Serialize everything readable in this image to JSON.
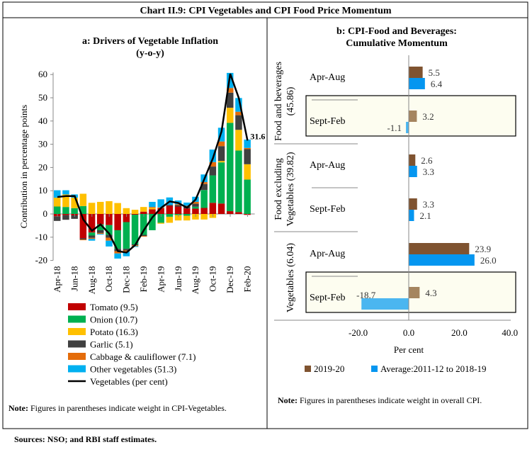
{
  "title": "Chart II.9: CPI Vegetables and CPI Food Price Momentum",
  "sources": "Sources: NSO; and RBI staff estimates.",
  "colors": {
    "tomato": "#c00000",
    "onion": "#00b050",
    "potato": "#ffc000",
    "garlic": "#404040",
    "cabbage": "#e46c0a",
    "other": "#00b0f0",
    "line": "#000000",
    "brown": "#7f5330",
    "brown_light": "#a5855f",
    "blue": "#0596f0",
    "blue_light": "#4bb6f0",
    "highlight": "#fdfdf0"
  },
  "chart_data": [
    {
      "type": "bar",
      "stacked": true,
      "title": "a: Drivers of Vegetable Inflation",
      "subtitle": "(y-o-y)",
      "ylabel": "Contribution in percentage points",
      "ylim": [
        -20,
        60
      ],
      "yticks": [
        -20,
        -10,
        0,
        10,
        20,
        30,
        40,
        50,
        60
      ],
      "categories": [
        "Apr-18",
        "May-18",
        "Jun-18",
        "Jul-18",
        "Aug-18",
        "Sep-18",
        "Oct-18",
        "Nov-18",
        "Dec-18",
        "Jan-19",
        "Feb-19",
        "Mar-19",
        "Apr-19",
        "May-19",
        "Jun-19",
        "Jul-19",
        "Aug-19",
        "Sep-19",
        "Oct-19",
        "Nov-19",
        "Dec-19",
        "Jan-20",
        "Feb-20"
      ],
      "xtick_labels": [
        "Apr-18",
        "Jun-18",
        "Aug-18",
        "Oct-18",
        "Dec-18",
        "Feb-19",
        "Apr-19",
        "Jun-19",
        "Aug-19",
        "Oct-19",
        "Dec-19",
        "Feb-20"
      ],
      "series": [
        {
          "name": "Tomato (9.5)",
          "key": "tomato",
          "values": [
            -1,
            -0.5,
            -0.6,
            -10.5,
            -8,
            -4.5,
            -4.8,
            -7,
            -3.5,
            -0.3,
            1,
            2,
            2.5,
            3.5,
            3.2,
            2.4,
            2.3,
            2.6,
            4.8,
            4.5,
            1.2,
            0.8,
            -0.4
          ]
        },
        {
          "name": "Onion (10.7)",
          "key": "onion",
          "values": [
            3.2,
            3,
            2.5,
            3.4,
            -1.3,
            -2.5,
            -4.2,
            -8,
            -11.5,
            -12.8,
            -9,
            -7,
            -3.8,
            -1.2,
            -0.5,
            -0.8,
            0.8,
            7.7,
            11.8,
            17.7,
            38,
            26.5,
            14.8
          ]
        },
        {
          "name": "Potato (16.3)",
          "key": "potato",
          "values": [
            3.8,
            5.4,
            4.5,
            5.3,
            4.8,
            5.2,
            5.5,
            4.7,
            2.5,
            1.8,
            2,
            0.6,
            -0.4,
            -2.6,
            -2.3,
            -2,
            -2.4,
            -2.4,
            -1.7,
            0.6,
            6.5,
            8.9,
            6.6
          ]
        },
        {
          "name": "Garlic (5.1)",
          "key": "garlic",
          "values": [
            -2,
            -2,
            -1.5,
            -0.5,
            -1,
            -1.2,
            -1.2,
            -1,
            -0.7,
            -0.4,
            -0.5,
            0,
            0,
            0.4,
            0.6,
            0.8,
            1.3,
            2.6,
            3.8,
            6.4,
            6.5,
            6.3,
            6.5
          ]
        },
        {
          "name": "Cabbage & cauliflower (7.1)",
          "key": "cabbage",
          "values": [
            0,
            0,
            0,
            -0.3,
            -0.4,
            -0.4,
            -1.3,
            -1,
            -0.5,
            -0.4,
            -0.3,
            0.4,
            0.3,
            0,
            0.4,
            0.3,
            0.8,
            0.8,
            1.9,
            2,
            2,
            1.5,
            0.5
          ]
        },
        {
          "name": "Other vegetables (51.3)",
          "key": "other",
          "values": [
            3.2,
            1.8,
            1.4,
            0,
            -0.8,
            -0.3,
            -2.5,
            -2.2,
            -2,
            -0.3,
            0,
            2.2,
            3.5,
            3.2,
            1.6,
            1.4,
            2.2,
            3.3,
            5.4,
            5.9,
            6.5,
            5.9,
            3.6
          ]
        }
      ],
      "line": {
        "name": "Vegetables (per cent)",
        "values": [
          7.3,
          7.7,
          7.7,
          -2.4,
          -7.2,
          -4.5,
          -8.5,
          -16,
          -16.6,
          -13.4,
          -7,
          -1.4,
          2.6,
          5.4,
          4.7,
          2.7,
          6.2,
          15,
          24,
          35.6,
          60.3,
          49.8,
          31.6
        ],
        "end_label": "31.6"
      },
      "note_bold": "Note:",
      "note": " Figures in parentheses indicate weight in CPI-Vegetables."
    },
    {
      "type": "bar",
      "orientation": "horizontal",
      "title": "b: CPI-Food and Beverages:",
      "title2": "Cumulative Momentum",
      "xlabel": "Per cent",
      "xlim": [
        -20,
        40
      ],
      "xticks": [
        "-20.0",
        "0.0",
        "20.0",
        "40.0"
      ],
      "groups": [
        {
          "label1": "Food and beverages",
          "label2": "(45.86)",
          "rows": [
            {
              "period": "Apr-Aug",
              "v2019": 5.5,
              "avg": 6.4,
              "l2019": "5.5",
              "lavg": "6.4",
              "highlight": false
            },
            {
              "period": "Sept-Feb",
              "v2019": 3.2,
              "avg": -1.1,
              "l2019": "3.2",
              "lavg": "-1.1",
              "highlight": true
            }
          ]
        },
        {
          "label1": "Food excluding",
          "label2": "Vegetables (39.82)",
          "rows": [
            {
              "period": "Apr-Aug",
              "v2019": 2.6,
              "avg": 3.3,
              "l2019": "2.6",
              "lavg": "3.3",
              "highlight": false
            },
            {
              "period": "Sept-Feb",
              "v2019": 3.3,
              "avg": 2.1,
              "l2019": "3.3",
              "lavg": "2.1",
              "highlight": false
            }
          ]
        },
        {
          "label1": "Vegetables (6.04)",
          "label2": "",
          "rows": [
            {
              "period": "Apr-Aug",
              "v2019": 23.9,
              "avg": 26.0,
              "l2019": "23.9",
              "lavg": "26.0",
              "highlight": false
            },
            {
              "period": "Sept-Feb",
              "v2019": 4.3,
              "avg": -18.7,
              "l2019": "4.3",
              "lavg": "-18.7",
              "highlight": true
            }
          ]
        }
      ],
      "series": [
        {
          "name": "2019-20"
        },
        {
          "name": "Average:2011-12 to 2018-19"
        }
      ],
      "note_bold": "Note:",
      "note": " Figures in parentheses indicate weight in overall CPI."
    }
  ]
}
